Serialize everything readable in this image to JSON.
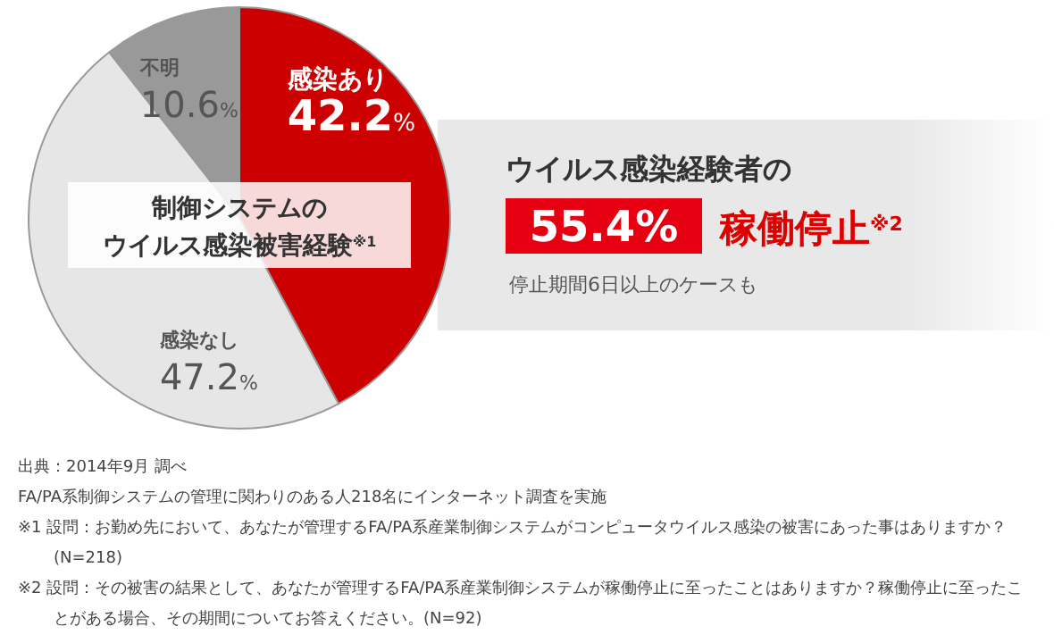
{
  "chart_data": {
    "type": "pie",
    "title": "制御システムの",
    "subtitle": "ウイルス感染被害経験$^{※1}$",
    "categories": [
      "感染あり",
      "感染なし",
      "不明"
    ],
    "values": [
      42.2,
      47.2,
      10.6
    ],
    "colors": [
      "#cc0000",
      "#e6e6e6",
      "#999999"
    ],
    "value_labels": [
      "42.2%",
      "47.2%",
      "10.6%"
    ],
    "annotations": [
      "ウイルス感染経験者の",
      "55.4%",
      "稼働停止$^{※2}$",
      "停止期間6日以上のケースも",
      "出典：2014年9月 調べ",
      "FA/PA系制御システムの管理に関わりのある人218名にインターネット調査を実施",
      "※1 設問：お勤め先において、あなたが管理するFA/PA系産業制御システムがコンピュータウイルス感染の被害にあった事はありますか？ (N=218)",
      "※2 設問：その被害の結果として、あなたが管理するFA/PA系産業制御システムが稼働停止に至ったことはありますか？稼働停止に至ったことがある場合、その期間についてお答えください。(N=92)"
    ]
  }
}
